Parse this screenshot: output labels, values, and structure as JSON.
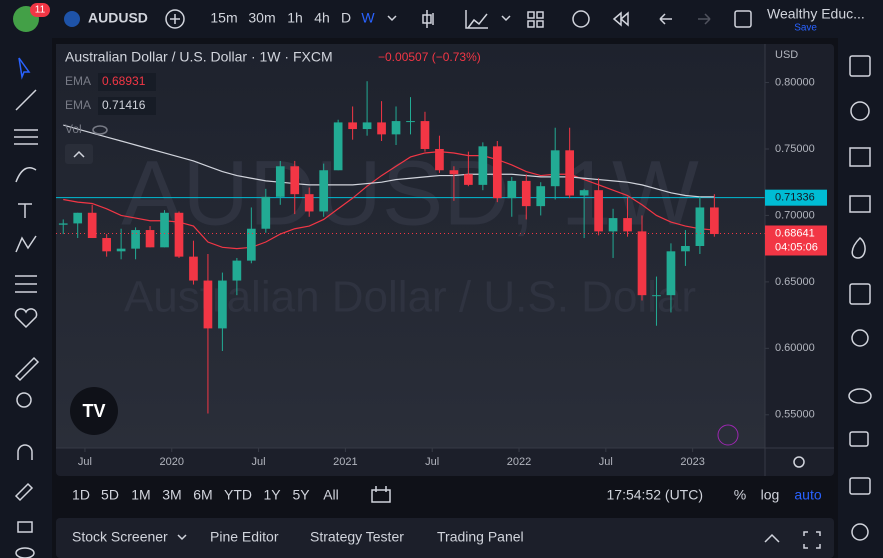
{
  "toolbar": {
    "badge": "11",
    "symbol": "AUDUSD",
    "intervals": [
      "15m",
      "30m",
      "1h",
      "4h",
      "D",
      "W"
    ],
    "account": "Wealthy Educ...",
    "save": "Save"
  },
  "chart_data": {
    "type": "candlestick",
    "title": "Australian Dollar / U.S. Dollar · 1W · FXCM",
    "change": "−0.00507 (−0.73%)",
    "volume_label": "Vol",
    "watermark": "AUDUSD, 1W",
    "watermark_subtitle": "Australian Dollar / U.S. Dollar",
    "currency": "USD",
    "up_color": "#22ab94",
    "down_color": "#f23645",
    "x": [
      "2019-05",
      "2019-06",
      "2019-07",
      "2019-08",
      "2019-09",
      "2019-10",
      "2019-11",
      "2019-12",
      "2020-01",
      "2020-02",
      "2020-03",
      "2020-04",
      "2020-05",
      "2020-06",
      "2020-07",
      "2020-08",
      "2020-09",
      "2020-10",
      "2020-11",
      "2020-12",
      "2021-01",
      "2021-02",
      "2021-03",
      "2021-04",
      "2021-05",
      "2021-06",
      "2021-07",
      "2021-08",
      "2021-09",
      "2021-10",
      "2021-11",
      "2021-12",
      "2022-01",
      "2022-02",
      "2022-03",
      "2022-04",
      "2022-05",
      "2022-06",
      "2022-07",
      "2022-08",
      "2022-09",
      "2022-10",
      "2022-11",
      "2022-12",
      "2023-01",
      "2023-02"
    ],
    "open": [
      0.693,
      0.694,
      0.702,
      0.683,
      0.673,
      0.675,
      0.689,
      0.676,
      0.702,
      0.669,
      0.651,
      0.615,
      0.651,
      0.666,
      0.69,
      0.714,
      0.737,
      0.716,
      0.703,
      0.734,
      0.77,
      0.765,
      0.77,
      0.761,
      0.771,
      0.771,
      0.75,
      0.734,
      0.731,
      0.723,
      0.752,
      0.713,
      0.726,
      0.707,
      0.722,
      0.749,
      0.715,
      0.719,
      0.688,
      0.698,
      0.688,
      0.64,
      0.64,
      0.673,
      0.677,
      0.706
    ],
    "high": [
      0.697,
      0.702,
      0.708,
      0.686,
      0.69,
      0.691,
      0.692,
      0.704,
      0.703,
      0.681,
      0.671,
      0.657,
      0.668,
      0.706,
      0.72,
      0.741,
      0.741,
      0.721,
      0.739,
      0.772,
      0.782,
      0.801,
      0.786,
      0.782,
      0.789,
      0.778,
      0.76,
      0.737,
      0.748,
      0.755,
      0.756,
      0.729,
      0.731,
      0.725,
      0.766,
      0.766,
      0.72,
      0.728,
      0.705,
      0.714,
      0.7,
      0.654,
      0.679,
      0.689,
      0.714,
      0.716
    ],
    "low": [
      0.686,
      0.683,
      0.683,
      0.669,
      0.667,
      0.667,
      0.676,
      0.676,
      0.668,
      0.648,
      0.551,
      0.598,
      0.64,
      0.664,
      0.687,
      0.708,
      0.701,
      0.699,
      0.699,
      0.734,
      0.757,
      0.76,
      0.756,
      0.753,
      0.761,
      0.748,
      0.732,
      0.711,
      0.722,
      0.719,
      0.71,
      0.699,
      0.697,
      0.7,
      0.712,
      0.713,
      0.683,
      0.685,
      0.668,
      0.684,
      0.636,
      0.617,
      0.627,
      0.662,
      0.671,
      0.684
    ],
    "close": [
      0.694,
      0.702,
      0.683,
      0.673,
      0.675,
      0.689,
      0.676,
      0.702,
      0.669,
      0.651,
      0.615,
      0.651,
      0.666,
      0.69,
      0.714,
      0.737,
      0.716,
      0.703,
      0.734,
      0.77,
      0.765,
      0.77,
      0.761,
      0.771,
      0.771,
      0.75,
      0.734,
      0.731,
      0.723,
      0.752,
      0.713,
      0.726,
      0.707,
      0.722,
      0.749,
      0.715,
      0.719,
      0.688,
      0.698,
      0.688,
      0.64,
      0.64,
      0.673,
      0.677,
      0.706,
      0.686
    ],
    "indicators": [
      {
        "name": "EMA",
        "value": 0.68931,
        "color": "#f23645",
        "values": [
          0.712,
          0.71,
          0.709,
          0.705,
          0.7,
          0.698,
          0.696,
          0.696,
          0.695,
          0.692,
          0.68,
          0.676,
          0.675,
          0.676,
          0.68,
          0.686,
          0.69,
          0.692,
          0.697,
          0.705,
          0.713,
          0.722,
          0.73,
          0.737,
          0.744,
          0.747,
          0.748,
          0.747,
          0.745,
          0.745,
          0.742,
          0.738,
          0.733,
          0.73,
          0.731,
          0.731,
          0.727,
          0.723,
          0.719,
          0.715,
          0.708,
          0.7,
          0.695,
          0.692,
          0.69,
          0.689
        ]
      },
      {
        "name": "EMA",
        "value": 0.71416,
        "color": "#d1d4dc",
        "values": [
          0.768,
          0.765,
          0.762,
          0.759,
          0.756,
          0.753,
          0.75,
          0.747,
          0.744,
          0.741,
          0.737,
          0.733,
          0.73,
          0.728,
          0.726,
          0.725,
          0.724,
          0.723,
          0.723,
          0.723,
          0.723,
          0.724,
          0.725,
          0.727,
          0.728,
          0.729,
          0.73,
          0.73,
          0.731,
          0.731,
          0.731,
          0.731,
          0.73,
          0.729,
          0.729,
          0.729,
          0.728,
          0.727,
          0.726,
          0.725,
          0.723,
          0.72,
          0.717,
          0.715,
          0.714,
          0.714
        ]
      }
    ],
    "horizontal_line": {
      "value": 0.71336,
      "color": "#00bcd4"
    },
    "last_price": {
      "value": 0.68641,
      "countdown": "04:05:06",
      "color": "#f23645"
    },
    "xlim": [
      "2019-05",
      "2023-06"
    ],
    "xticks": [
      {
        "value": "2019-07",
        "label": "Jul"
      },
      {
        "value": "2020-01",
        "label": "2020"
      },
      {
        "value": "2020-07",
        "label": "Jul"
      },
      {
        "value": "2021-01",
        "label": "2021"
      },
      {
        "value": "2021-07",
        "label": "Jul"
      },
      {
        "value": "2022-01",
        "label": "2022"
      },
      {
        "value": "2022-07",
        "label": "Jul"
      },
      {
        "value": "2023-01",
        "label": "2023"
      }
    ],
    "ylim": [
      0.525,
      0.829
    ],
    "yticks": [
      {
        "value": 0.8,
        "label": "0.80000"
      },
      {
        "value": 0.75,
        "label": "0.75000"
      },
      {
        "value": 0.7,
        "label": "0.70000"
      },
      {
        "value": 0.65,
        "label": "0.65000"
      },
      {
        "value": 0.6,
        "label": "0.60000"
      },
      {
        "value": 0.55,
        "label": "0.55000"
      }
    ]
  },
  "bottom_bar": {
    "ranges": [
      "1D",
      "5D",
      "1M",
      "3M",
      "6M",
      "YTD",
      "1Y",
      "5Y",
      "All"
    ],
    "clock": "17:54:52 (UTC)",
    "percent": "%",
    "log": "log",
    "auto": "auto"
  },
  "footer": {
    "tabs": [
      "Stock Screener",
      "Pine Editor",
      "Strategy Tester",
      "Trading Panel"
    ]
  }
}
